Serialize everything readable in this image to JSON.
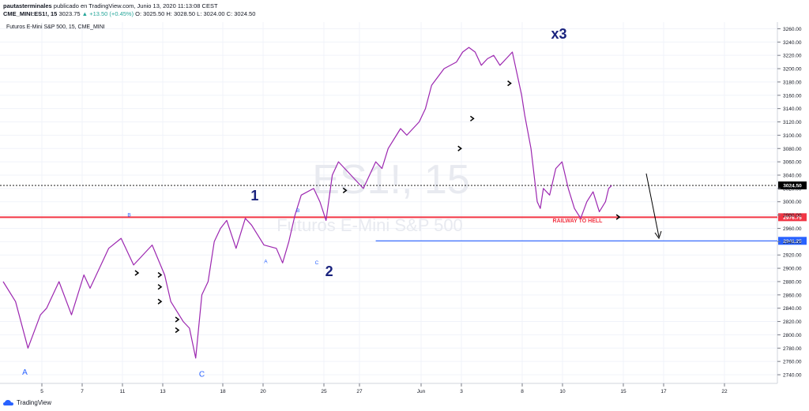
{
  "header": {
    "publisher_user": "pautasterminales",
    "publisher_rest": " publicado en TradingView.com, Junio 13, 2020 11:13:08 CEST",
    "symbol": "CME_MINI:ES1!, 15",
    "last": "3023.75",
    "change": "+13.50 (+0.45%)",
    "ohlc": "O: 3025.50  H: 3028.50  L: 3024.00  C: 3024.50"
  },
  "chart_title": "Futuros E-Mini S&P 500, 15, CME_MINI",
  "watermark": {
    "symbol": "ES1!, 15",
    "name": "Futuros E-Mini S&P 500"
  },
  "footer": {
    "brand": "TradingView"
  },
  "colors": {
    "price": "#9c27b0",
    "support": "#f23645",
    "target": "#2962ff",
    "wave": "#1a237e"
  },
  "chart_data": {
    "type": "line",
    "title": "Futuros E-Mini S&P 500, 15, CME_MINI",
    "x_tick_labels": [
      "5",
      "7",
      "11",
      "13",
      "18",
      "20",
      "25",
      "27",
      "Jun",
      "3",
      "8",
      "10",
      "15",
      "17",
      "22"
    ],
    "y_ticks": [
      2740,
      2760,
      2780,
      2800,
      2820,
      2840,
      2860,
      2880,
      2900,
      2920,
      2940,
      2960,
      2980,
      3000,
      3020,
      3040,
      3060,
      3080,
      3100,
      3120,
      3140,
      3160,
      3180,
      3200,
      3220,
      3240,
      3260
    ],
    "ylim": [
      2727,
      3270
    ],
    "xlim": [
      0,
      100
    ],
    "grid": true,
    "series": [
      {
        "x": [
          0,
          2,
          4,
          6,
          7,
          9,
          11,
          13,
          14,
          17,
          19,
          21,
          24,
          26,
          27,
          29,
          30,
          31,
          32,
          33,
          34,
          35,
          36,
          37.5,
          39,
          40,
          42,
          44,
          45,
          46,
          47,
          48,
          50,
          51,
          52,
          53,
          54,
          56,
          58,
          60,
          61,
          62,
          64,
          65,
          67,
          68,
          69,
          71,
          73,
          74,
          75,
          76,
          77,
          78,
          79,
          80,
          81,
          82,
          83.5,
          84,
          85,
          86,
          86.5,
          87,
          88,
          89,
          90,
          91,
          92,
          93,
          94,
          95,
          96,
          97,
          97.5,
          98
        ],
        "y": [
          2880,
          2850,
          2780,
          2830,
          2840,
          2880,
          2830,
          2890,
          2870,
          2930,
          2945,
          2905,
          2935,
          2890,
          2850,
          2820,
          2810,
          2765,
          2860,
          2880,
          2940,
          2960,
          2972,
          2930,
          2975,
          2965,
          2935,
          2930,
          2908,
          2940,
          2980,
          3010,
          3020,
          3000,
          2972,
          3040,
          3060,
          3040,
          3020,
          3060,
          3050,
          3080,
          3110,
          3100,
          3120,
          3140,
          3175,
          3200,
          3210,
          3225,
          3232,
          3225,
          3205,
          3215,
          3220,
          3205,
          3215,
          3225,
          3160,
          3130,
          3080,
          3000,
          2990,
          3020,
          3010,
          3050,
          3060,
          3020,
          2990,
          2975,
          3000,
          3015,
          2985,
          3000,
          3020,
          3024.5
        ]
      }
    ],
    "horizontal_lines": [
      {
        "value": 2976.75,
        "label": "2976.75",
        "color": "#f23645"
      },
      {
        "value": 2941.25,
        "label": "2941.25",
        "color": "#2962ff"
      },
      {
        "value": 3024.5,
        "label": "3024.50",
        "color": "#000000"
      }
    ],
    "annotations": {
      "text": "RAILWAY TO  HELL",
      "waves": [
        {
          "label": "1",
          "x": 40.5,
          "y": 3002
        },
        {
          "label": "2",
          "x": 52.5,
          "y": 2888
        },
        {
          "label": "x3",
          "x": 89.5,
          "y": 3245
        }
      ],
      "small": [
        {
          "label": "A",
          "x": 3.5,
          "y": 2740
        },
        {
          "label": "B",
          "x": 20.3,
          "y": 2978
        },
        {
          "label": "C",
          "x": 32.0,
          "y": 2737
        },
        {
          "label": "A",
          "x": 42.3,
          "y": 2908
        },
        {
          "label": "B",
          "x": 47.5,
          "y": 2984
        },
        {
          "label": "C",
          "x": 50.5,
          "y": 2906
        }
      ]
    }
  }
}
